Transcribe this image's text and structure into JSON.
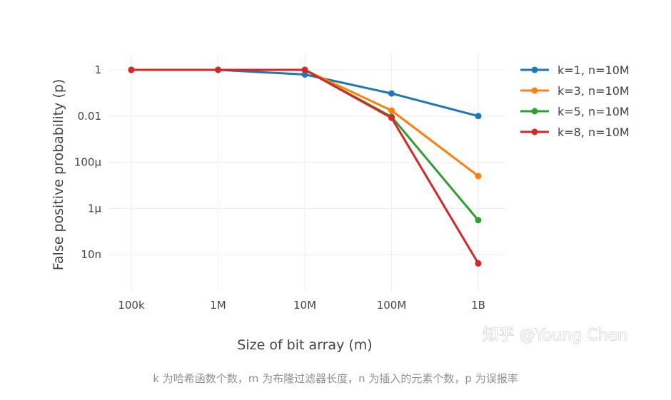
{
  "chart_data": {
    "type": "line",
    "title": "",
    "xlabel": "Size of bit array (m)",
    "ylabel": "False positive probability (p)",
    "x_scale": "log",
    "y_scale": "log",
    "categories": [
      "100k",
      "1M",
      "10M",
      "100M",
      "1B"
    ],
    "x": [
      100000,
      1000000,
      10000000,
      100000000,
      1000000000
    ],
    "y_ticks": [
      {
        "label": "1",
        "value": 1
      },
      {
        "label": "0.01",
        "value": 0.01
      },
      {
        "label": "100μ",
        "value": 0.0001
      },
      {
        "label": "1μ",
        "value": 1e-06
      },
      {
        "label": "10n",
        "value": 1e-08
      }
    ],
    "ylim": [
      4e-10,
      3
    ],
    "grid": true,
    "legend_position": "top-right",
    "series": [
      {
        "name": "k=1, n=10M",
        "color": "#1f77b4",
        "values": [
          1,
          1,
          0.632,
          0.095,
          0.01
        ]
      },
      {
        "name": "k=3, n=10M",
        "color": "#ff7f0e",
        "values": [
          1,
          1,
          1,
          0.0174,
          2.53e-05
        ]
      },
      {
        "name": "k=5, n=10M",
        "color": "#2ca02c",
        "values": [
          1,
          1,
          1,
          0.0094,
          3.1e-07
        ]
      },
      {
        "name": "k=8, n=10M",
        "color": "#d62728",
        "values": [
          1,
          1,
          1,
          0.0084,
          4.2e-09
        ]
      }
    ]
  },
  "watermark": "知乎 @Young Chen",
  "caption": "k 为哈希函数个数，m 为布隆过滤器长度，n 为插入的元素个数，p 为误报率"
}
